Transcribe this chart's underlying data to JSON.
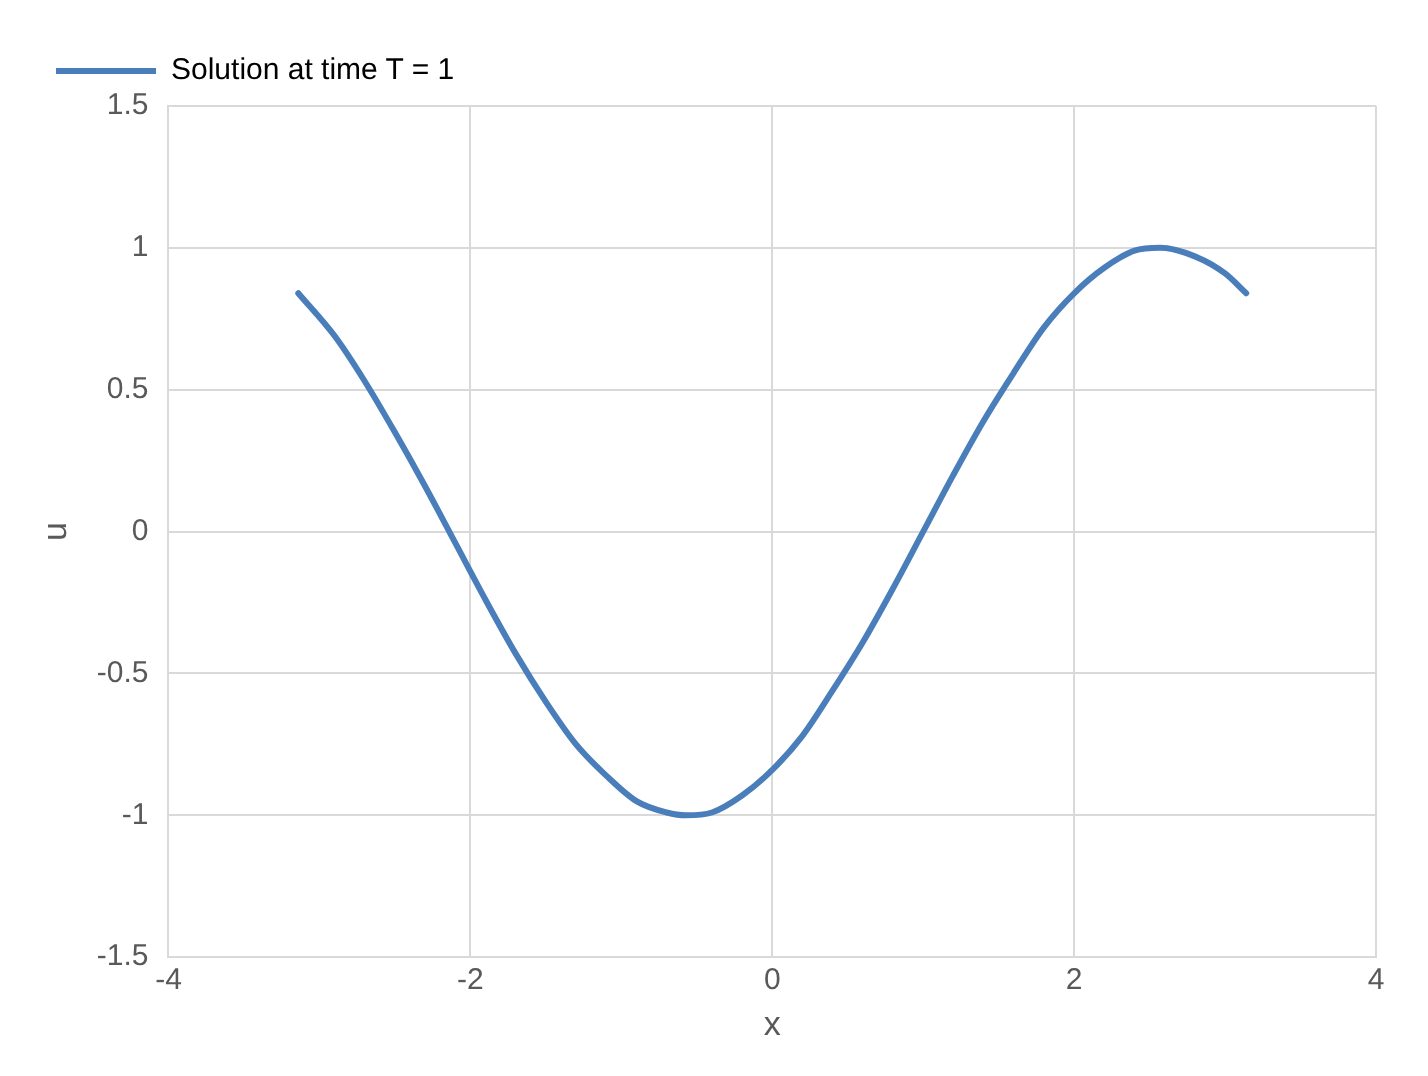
{
  "chart_data": {
    "type": "line",
    "xlabel": "x",
    "ylabel": "u",
    "xlim": [
      -4,
      4
    ],
    "xticks": [
      -4,
      -2,
      0,
      2,
      4
    ],
    "ylim": [
      -1.5,
      1.5
    ],
    "yticks": [
      -1.5,
      -1,
      -0.5,
      0,
      0.5,
      1,
      1.5
    ],
    "grid": true,
    "legend": "top left",
    "marker": "none",
    "line_style": "solid",
    "series": [
      {
        "name": "Solution at time T = 1",
        "color": "#4a7ebb",
        "x": [
          -3.14,
          -2.9,
          -2.7,
          -2.5,
          -2.3,
          -2.1,
          -1.9,
          -1.7,
          -1.5,
          -1.3,
          -1.1,
          -0.9,
          -0.7,
          -0.57,
          -0.4,
          -0.2,
          0,
          0.2,
          0.4,
          0.6,
          0.8,
          1.0,
          1.2,
          1.4,
          1.6,
          1.8,
          2.0,
          2.2,
          2.4,
          2.57,
          2.8,
          3.0,
          3.14
        ],
        "values": [
          0.84,
          0.69,
          0.53,
          0.35,
          0.16,
          -0.04,
          -0.24,
          -0.43,
          -0.6,
          -0.75,
          -0.86,
          -0.95,
          -0.99,
          -1.0,
          -0.99,
          -0.93,
          -0.84,
          -0.72,
          -0.56,
          -0.39,
          -0.2,
          0,
          0.2,
          0.39,
          0.56,
          0.72,
          0.84,
          0.93,
          0.99,
          1.0,
          0.97,
          0.91,
          0.84
        ]
      }
    ]
  }
}
